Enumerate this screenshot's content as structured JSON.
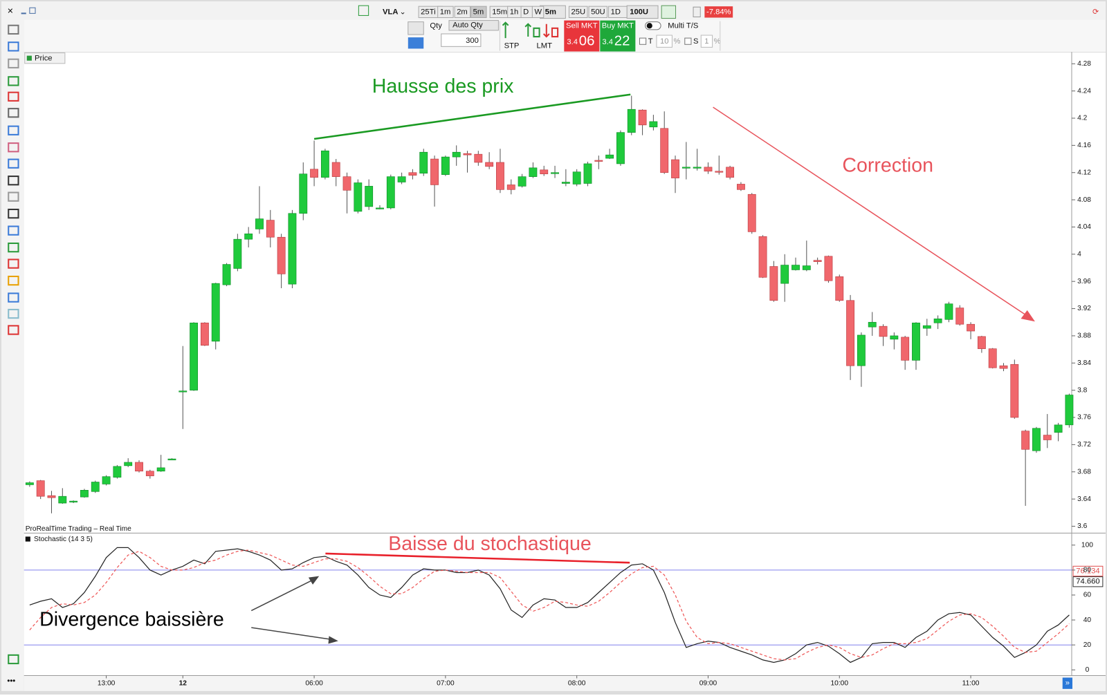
{
  "toolbar": {
    "symbol": "VLA",
    "periods": [
      "25Ti",
      "1m",
      "2m",
      "5m",
      "15m",
      "1h",
      "D",
      "W"
    ],
    "period_select": "5m",
    "units": [
      "25U",
      "50U",
      "1D"
    ],
    "unit_select": "100U",
    "change": "-7.84%"
  },
  "order_bar": {
    "qty_label": "Qty",
    "auto_qty": "Auto Qty",
    "qty": 300,
    "stp": "STP",
    "lmt": "LMT",
    "sell_label": "Sell MKT",
    "sell_small": "3.4",
    "sell_big": "06",
    "buy_label": "Buy MKT",
    "buy_small": "3.4",
    "buy_big": "22",
    "multi": "Multi T/S",
    "t": "T",
    "t_value": 10,
    "t_unit": "%",
    "s": "S",
    "s_value": 1,
    "s_unit": "%"
  },
  "panel": {
    "price_tab": "Price",
    "source": "ProRealTime Trading – Real Time",
    "indicator": "Stochastic (14 3 5)",
    "badges": [
      "76.134",
      "74.660"
    ]
  },
  "chart_data": [
    {
      "type": "candlestick",
      "up_color": "#1fca3c",
      "down_color": "#f0676c",
      "categories": [
        null,
        null,
        null,
        null,
        null,
        null,
        null,
        "13:00",
        null,
        null,
        null,
        null,
        null,
        null,
        "12",
        null,
        null,
        null,
        null,
        null,
        null,
        null,
        null,
        null,
        null,
        null,
        "06:00",
        null,
        null,
        null,
        null,
        null,
        null,
        null,
        null,
        null,
        null,
        null,
        "07:00",
        null,
        null,
        null,
        null,
        null,
        null,
        null,
        null,
        null,
        null,
        null,
        "08:00",
        null,
        null,
        null,
        null,
        null,
        null,
        null,
        null,
        null,
        null,
        null,
        "09:00",
        null,
        null,
        null,
        null,
        null,
        null,
        null,
        null,
        null,
        null,
        null,
        "10:00",
        null,
        null,
        null,
        null,
        null,
        null,
        null,
        null,
        null,
        null,
        null,
        "11:00",
        null,
        null,
        null,
        null,
        null,
        null,
        null,
        null,
        null
      ],
      "open": [
        3.661,
        3.667,
        3.645,
        3.634,
        3.636,
        3.643,
        3.651,
        3.662,
        3.672,
        3.689,
        3.694,
        3.681,
        3.681,
        3.699,
        3.798,
        3.8,
        3.899,
        3.872,
        3.955,
        3.979,
        4.022,
        4.037,
        4.05,
        4.025,
        3.956,
        4.06,
        4.125,
        4.113,
        4.135,
        4.114,
        4.063,
        4.07,
        4.068,
        4.068,
        4.106,
        4.12,
        4.119,
        4.14,
        4.117,
        4.143,
        4.148,
        4.147,
        4.135,
        4.135,
        4.102,
        4.1,
        4.114,
        4.124,
        4.12,
        4.104,
        4.103,
        4.104,
        4.138,
        4.141,
        4.133,
        4.179,
        4.212,
        4.187,
        4.185,
        4.139,
        4.128,
        4.128,
        4.128,
        4.122,
        4.128,
        4.103,
        4.088,
        4.026,
        3.982,
        3.957,
        3.977,
        3.977,
        3.991,
        3.997,
        3.967,
        3.932,
        3.836,
        3.893,
        3.894,
        3.875,
        3.878,
        3.844,
        3.891,
        3.899,
        3.904,
        3.921,
        3.897,
        3.879,
        3.861,
        3.836,
        3.838,
        3.74,
        3.711,
        3.734,
        3.738,
        3.749
      ],
      "high": [
        3.666,
        3.668,
        3.652,
        3.656,
        3.638,
        3.655,
        3.667,
        3.675,
        3.69,
        3.7,
        3.697,
        3.683,
        3.705,
        3.7,
        3.865,
        3.9,
        3.9,
        3.958,
        3.987,
        4.03,
        4.04,
        4.1,
        4.065,
        4.03,
        4.065,
        4.135,
        4.167,
        4.155,
        4.14,
        4.12,
        4.11,
        4.11,
        4.072,
        4.117,
        4.12,
        4.125,
        4.155,
        4.145,
        4.145,
        4.16,
        4.152,
        4.152,
        4.15,
        4.155,
        4.11,
        4.118,
        4.135,
        4.13,
        4.13,
        4.125,
        4.125,
        4.136,
        4.145,
        4.155,
        4.182,
        4.233,
        4.213,
        4.205,
        4.21,
        4.145,
        4.165,
        4.155,
        4.135,
        4.145,
        4.13,
        4.106,
        4.09,
        4.028,
        3.99,
        4.0,
        3.995,
        4.02,
        3.995,
        3.998,
        3.97,
        3.94,
        3.885,
        3.915,
        3.897,
        3.885,
        3.88,
        3.9,
        3.905,
        3.91,
        3.93,
        3.925,
        3.9,
        3.88,
        3.862,
        3.84,
        3.845,
        3.742,
        3.746,
        3.765,
        3.752,
        3.795
      ],
      "low": [
        3.658,
        3.64,
        3.619,
        3.633,
        3.634,
        3.642,
        3.649,
        3.66,
        3.67,
        3.687,
        3.679,
        3.67,
        3.68,
        3.699,
        3.743,
        3.799,
        3.865,
        3.86,
        3.953,
        3.975,
        4.01,
        4.03,
        4.01,
        3.95,
        3.95,
        4.05,
        4.1,
        4.11,
        4.1,
        4.06,
        4.06,
        4.065,
        4.066,
        4.066,
        4.103,
        4.11,
        4.115,
        4.07,
        4.115,
        4.13,
        4.12,
        4.13,
        4.125,
        4.09,
        4.088,
        4.098,
        4.112,
        4.115,
        4.112,
        4.1,
        4.1,
        4.1,
        4.125,
        4.14,
        4.13,
        4.175,
        4.175,
        4.182,
        4.118,
        4.09,
        4.11,
        4.123,
        4.118,
        4.117,
        4.11,
        4.093,
        4.03,
        3.965,
        3.93,
        3.93,
        3.976,
        3.975,
        3.985,
        3.958,
        3.93,
        3.815,
        3.805,
        3.88,
        3.865,
        3.86,
        3.83,
        3.83,
        3.88,
        3.89,
        3.9,
        3.895,
        3.875,
        3.855,
        3.832,
        3.828,
        3.758,
        3.63,
        3.708,
        3.715,
        3.725,
        3.745
      ],
      "close": [
        3.664,
        3.644,
        3.642,
        3.644,
        3.637,
        3.653,
        3.665,
        3.673,
        3.688,
        3.694,
        3.681,
        3.674,
        3.686,
        3.699,
        3.799,
        3.899,
        3.866,
        3.957,
        3.985,
        4.022,
        4.03,
        4.052,
        4.025,
        3.971,
        4.06,
        4.118,
        4.113,
        4.152,
        4.114,
        4.094,
        4.105,
        4.1,
        4.068,
        4.114,
        4.114,
        4.116,
        4.15,
        4.102,
        4.143,
        4.15,
        4.146,
        4.135,
        4.129,
        4.095,
        4.095,
        4.114,
        4.127,
        4.118,
        4.12,
        4.106,
        4.121,
        4.133,
        4.137,
        4.146,
        4.179,
        4.213,
        4.19,
        4.195,
        4.12,
        4.112,
        4.128,
        4.128,
        4.122,
        4.121,
        4.113,
        4.095,
        4.033,
        3.966,
        3.932,
        3.984,
        3.984,
        3.983,
        3.989,
        3.961,
        3.932,
        3.836,
        3.881,
        3.9,
        3.879,
        3.88,
        3.844,
        3.899,
        3.895,
        3.905,
        3.927,
        3.897,
        3.887,
        3.861,
        3.833,
        3.832,
        3.76,
        3.713,
        3.744,
        3.727,
        3.749,
        3.793
      ],
      "ylim": [
        3.591,
        4.296
      ],
      "yticks": [
        4.28,
        4.24,
        4.2,
        4.16,
        4.12,
        4.08,
        4.04,
        4,
        3.96,
        3.92,
        3.88,
        3.84,
        3.8,
        3.76,
        3.72,
        3.68,
        3.64,
        3.6
      ],
      "annotations": [
        {
          "text": "Hausse des prix",
          "color": "#1a9a22"
        },
        {
          "text": "Correction",
          "color": "#e8545c"
        }
      ]
    },
    {
      "type": "line",
      "ylim": [
        -4.5,
        108.5
      ],
      "yticks": [
        100,
        80,
        60,
        40,
        20,
        0
      ],
      "levels": [
        80,
        20
      ],
      "level_color": "#8080ee",
      "series": [
        {
          "color": "#222222",
          "dashed": false,
          "values": [
            52,
            55,
            57,
            50,
            53,
            62,
            75,
            90,
            98,
            98,
            90,
            80,
            76,
            80,
            83,
            88,
            85,
            95,
            96,
            97,
            95,
            92,
            88,
            80,
            81,
            86,
            90,
            91,
            87,
            84,
            76,
            66,
            60,
            58,
            66,
            76,
            81,
            80,
            80,
            78,
            78,
            80,
            76,
            65,
            48,
            42,
            52,
            57,
            56,
            50,
            50,
            54,
            62,
            70,
            78,
            84,
            85,
            80,
            62,
            38,
            18,
            21,
            23,
            22,
            18,
            15,
            12,
            8,
            6,
            8,
            13,
            20,
            22,
            19,
            13,
            6,
            10,
            21,
            22,
            22,
            18,
            26,
            31,
            40,
            45,
            46,
            44,
            35,
            26,
            19,
            10,
            14,
            20,
            31,
            36,
            44
          ]
        },
        {
          "color": "#ee5555",
          "dashed": true,
          "values": [
            32,
            42,
            50,
            53,
            52,
            54,
            60,
            70,
            82,
            92,
            95,
            90,
            83,
            80,
            80,
            82,
            86,
            88,
            92,
            95,
            96,
            94,
            92,
            88,
            84,
            83,
            86,
            89,
            89,
            87,
            82,
            75,
            67,
            61,
            61,
            66,
            73,
            79,
            80,
            79,
            78,
            78,
            78,
            74,
            63,
            52,
            47,
            50,
            55,
            54,
            52,
            51,
            55,
            62,
            70,
            77,
            82,
            83,
            76,
            60,
            39,
            26,
            21,
            22,
            21,
            18,
            15,
            12,
            9,
            8,
            9,
            14,
            18,
            20,
            18,
            13,
            10,
            12,
            17,
            21,
            21,
            22,
            25,
            32,
            39,
            44,
            45,
            42,
            35,
            27,
            18,
            14,
            15,
            22,
            29,
            37
          ]
        }
      ],
      "annotations": [
        {
          "text": "Baisse du stochastique",
          "color": "#e8545c"
        },
        {
          "text": "Divergence baissière",
          "color": "#000000"
        }
      ]
    }
  ]
}
